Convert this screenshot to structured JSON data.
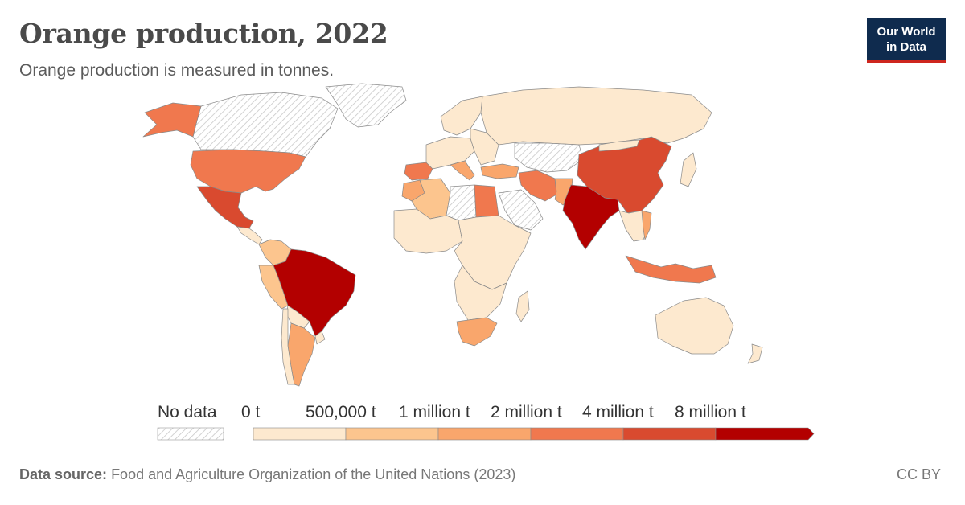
{
  "header": {
    "title": "Orange production, 2022",
    "subtitle": "Orange production is measured in tonnes."
  },
  "logo": {
    "line1": "Our World",
    "line2": "in Data",
    "color": "#0f2b4e",
    "accent": "#ce261e"
  },
  "legend": {
    "no_data_label": "No data",
    "bins": [
      {
        "label": "0 t",
        "color": "#fde9cf"
      },
      {
        "label": "500,000 t",
        "color": "#fcc58e"
      },
      {
        "label": "1 million t",
        "color": "#f9a66c"
      },
      {
        "label": "2 million t",
        "color": "#f0784e"
      },
      {
        "label": "4 million t",
        "color": "#d94a2f"
      },
      {
        "label": "8 million t",
        "color": "#b30000"
      }
    ]
  },
  "footer": {
    "source_label": "Data source:",
    "source_text": "Food and Agriculture Organization of the United Nations (2023)",
    "license": "CC BY"
  },
  "chart_data": {
    "type": "choropleth",
    "title": "Orange production, 2022",
    "subtitle": "Orange production is measured in tonnes.",
    "unit": "t",
    "bins": [
      "0 t",
      "500,000 t",
      "1 million t",
      "2 million t",
      "4 million t",
      "8 million t"
    ],
    "regions": [
      {
        "name": "Brazil",
        "bin": 5
      },
      {
        "name": "India",
        "bin": 5
      },
      {
        "name": "China",
        "bin": 4
      },
      {
        "name": "Mexico",
        "bin": 4
      },
      {
        "name": "United States",
        "bin": 3
      },
      {
        "name": "Spain",
        "bin": 3
      },
      {
        "name": "Egypt",
        "bin": 3
      },
      {
        "name": "Indonesia",
        "bin": 3
      },
      {
        "name": "Iran",
        "bin": 3
      },
      {
        "name": "South Africa",
        "bin": 2
      },
      {
        "name": "Turkey",
        "bin": 2
      },
      {
        "name": "Argentina",
        "bin": 2
      },
      {
        "name": "Pakistan",
        "bin": 2
      },
      {
        "name": "Morocco",
        "bin": 2
      },
      {
        "name": "Italy",
        "bin": 2
      },
      {
        "name": "Vietnam",
        "bin": 2
      },
      {
        "name": "Peru",
        "bin": 1
      },
      {
        "name": "Colombia",
        "bin": 1
      },
      {
        "name": "Algeria",
        "bin": 1
      },
      {
        "name": "Russia",
        "bin": 0
      },
      {
        "name": "Australia",
        "bin": 0
      },
      {
        "name": "Canada",
        "bin": null
      },
      {
        "name": "Greenland",
        "bin": null
      },
      {
        "name": "Kazakhstan",
        "bin": null
      },
      {
        "name": "Libya",
        "bin": null
      },
      {
        "name": "Saudi Arabia",
        "bin": null
      }
    ]
  }
}
